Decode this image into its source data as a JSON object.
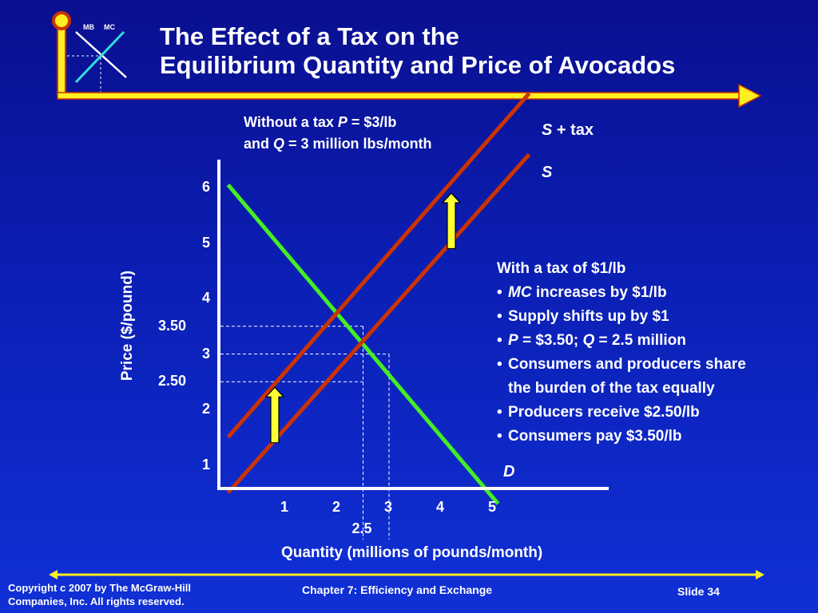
{
  "logo": {
    "mb_label": "MB",
    "mc_label": "MC"
  },
  "title": {
    "line1": "The Effect of a Tax on the",
    "line2": "Equilibrium Quantity and Price of Avocados"
  },
  "note_without_tax": {
    "line1_pre": "Without a tax ",
    "line1_var": "P",
    "line1_post": " = $3/lb",
    "line2_pre": "and ",
    "line2_var": "Q",
    "line2_post": " = 3 million lbs/month"
  },
  "curve_labels": {
    "s_plus_tax_var": "S",
    "s_plus_tax_rest": " + tax",
    "supply": "S",
    "demand": "D"
  },
  "tax_bullets": {
    "heading": "With a tax of $1/lb",
    "b1_var": "MC",
    "b1_rest": " increases by $1/lb",
    "b2": "Supply shifts up by $1",
    "b3_var1": "P",
    "b3_mid": " = $3.50; ",
    "b3_var2": "Q",
    "b3_rest": " = 2.5 million",
    "b4_line1": "Consumers and producers share",
    "b4_line2": "the burden of the tax equally",
    "b5": "Producers receive $2.50/lb",
    "b6": "Consumers pay $3.50/lb"
  },
  "chart_data": {
    "type": "line",
    "xlabel": "Quantity (millions of pounds/month)",
    "ylabel": "Price ($/pound)",
    "xlim": [
      0,
      6
    ],
    "ylim": [
      0,
      6.5
    ],
    "x_ticks": [
      "1",
      "2",
      "3",
      "4",
      "5"
    ],
    "x_extra_tick": "2.5",
    "y_ticks": [
      "1",
      "2",
      "3",
      "4",
      "5",
      "6"
    ],
    "y_extra_ticks": [
      "3.50",
      "2.50"
    ],
    "colors": {
      "demand": "#44ee22",
      "supply": "#cc3300",
      "axis": "#ffffff",
      "arrow": "#ffff33"
    },
    "series": [
      {
        "name": "D",
        "points": [
          [
            -0.1,
            6.05
          ],
          [
            5.1,
            0.3
          ]
        ]
      },
      {
        "name": "S",
        "points": [
          [
            -0.1,
            0.5
          ],
          [
            5.7,
            6.6
          ]
        ]
      },
      {
        "name": "S + tax",
        "points": [
          [
            -0.1,
            1.5
          ],
          [
            5.7,
            7.7
          ]
        ]
      }
    ],
    "equilibria": [
      {
        "label": "without tax",
        "q": 3,
        "p": 3
      },
      {
        "label": "with tax",
        "q": 2.5,
        "p": 3.5
      },
      {
        "label": "producer price",
        "q": 2.5,
        "p": 2.5
      }
    ],
    "shift_arrows": [
      {
        "q": 0.8,
        "p_from": 1.4,
        "p_to": 2.4
      },
      {
        "q": 4.2,
        "p_from": 4.9,
        "p_to": 5.9
      }
    ]
  },
  "footer": {
    "copyright_line1": "Copyright c 2007 by The McGraw-Hill",
    "copyright_line2": "Companies, Inc.  All rights reserved.",
    "chapter": "Chapter 7: Efficiency and Exchange",
    "slide": "Slide 34"
  }
}
